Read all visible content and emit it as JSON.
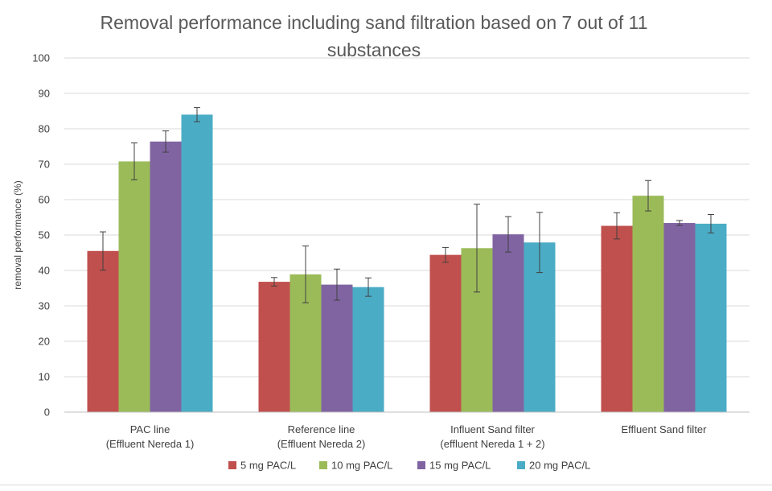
{
  "chart_data": {
    "type": "bar",
    "title": [
      "Removal performance including sand filtration based on 7 out of 11",
      "substances"
    ],
    "ylabel": "removal performance (%)",
    "xlabel": "",
    "ylim": [
      0,
      100
    ],
    "yticks": [
      0,
      10,
      20,
      30,
      40,
      50,
      60,
      70,
      80,
      90,
      100
    ],
    "grid": true,
    "legend_position": "bottom",
    "categories": [
      [
        "PAC line",
        "(Effluent Nereda 1)"
      ],
      [
        "Reference line",
        "(Effluent Nereda 2)"
      ],
      [
        "Influent Sand filter",
        "(effluent Nereda 1 + 2)"
      ],
      [
        "Effluent Sand filter"
      ]
    ],
    "series": [
      {
        "name": "5 mg PAC/L",
        "color": "#c0504d",
        "values": [
          45.5,
          36.8,
          44.4,
          52.6
        ],
        "error": [
          5.4,
          1.2,
          2.1,
          3.7
        ]
      },
      {
        "name": "10 mg PAC/L",
        "color": "#9bbb59",
        "values": [
          70.8,
          38.9,
          46.3,
          61.1
        ],
        "error": [
          5.2,
          8.0,
          12.4,
          4.3
        ]
      },
      {
        "name": "15 mg PAC/L",
        "color": "#8064a2",
        "values": [
          76.4,
          36.0,
          50.2,
          53.4
        ],
        "error": [
          3.0,
          4.4,
          5.0,
          0.7
        ]
      },
      {
        "name": "20 mg PAC/L",
        "color": "#4bacc6",
        "values": [
          84.0,
          35.3,
          47.9,
          53.2
        ],
        "error": [
          2.0,
          2.6,
          8.5,
          2.6
        ]
      }
    ]
  }
}
